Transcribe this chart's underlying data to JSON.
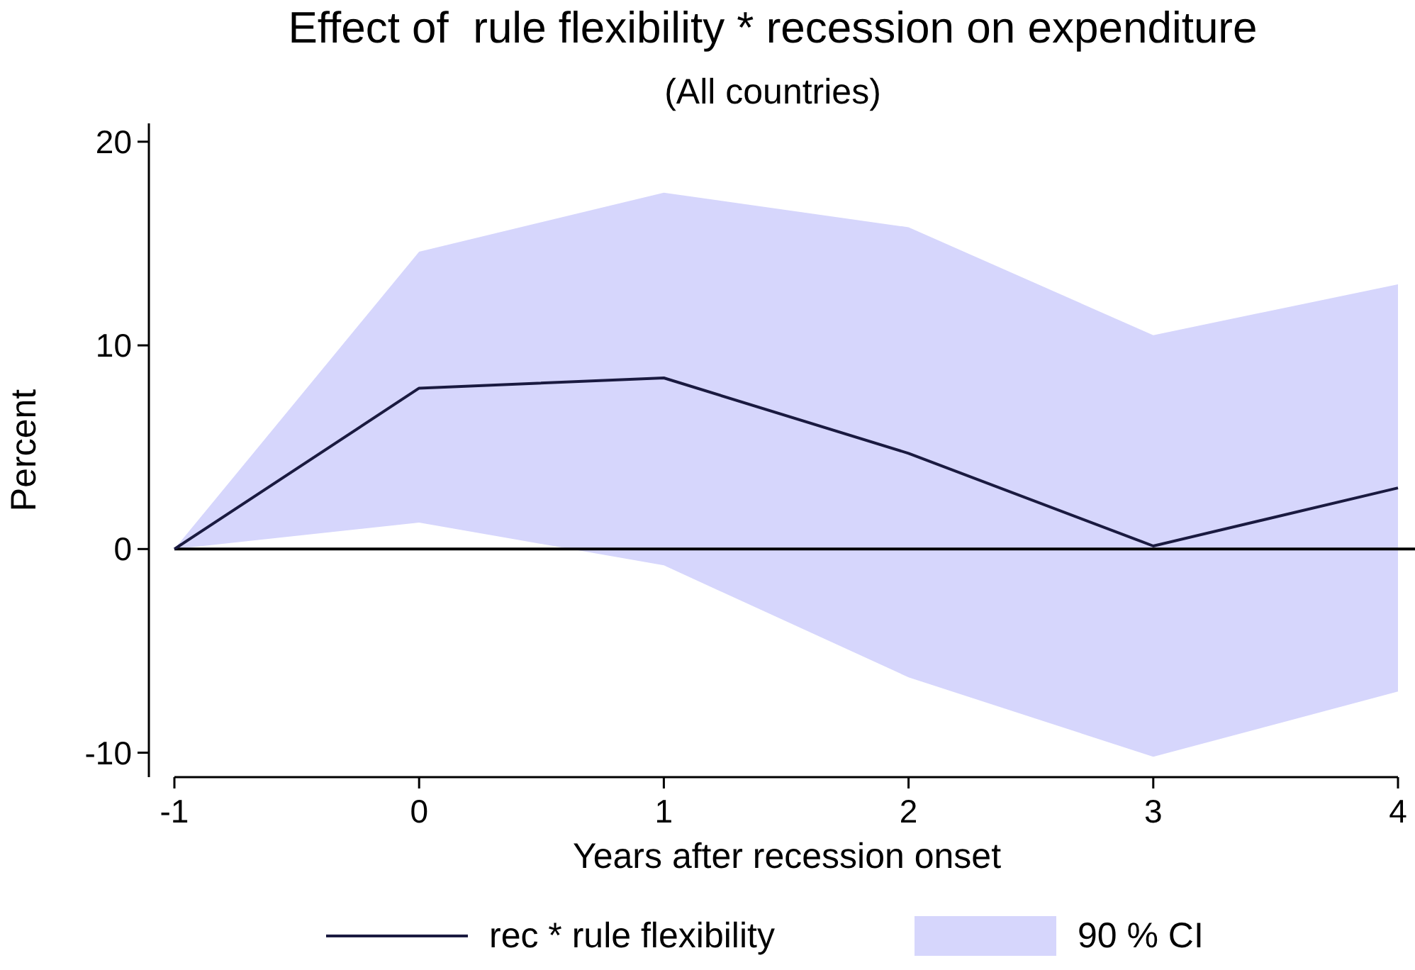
{
  "chart_data": {
    "type": "line",
    "title": "Effect of  rule flexibility * recession on expenditure",
    "subtitle": "(All countries)",
    "xlabel": "Years after recession onset",
    "ylabel": "Percent",
    "x": [
      -1,
      0,
      1,
      2,
      3,
      4
    ],
    "xlim": [
      -1,
      4
    ],
    "xticks": [
      -1,
      0,
      1,
      2,
      3,
      4
    ],
    "ylim": [
      -11.2,
      20.9
    ],
    "yticks": [
      -10,
      0,
      10,
      20
    ],
    "series": [
      {
        "name": "rec * rule flexibility",
        "color": "#1a1a40",
        "values": [
          0,
          7.9,
          8.4,
          4.7,
          0.15,
          3.0
        ],
        "lower": [
          0,
          1.3,
          -0.8,
          -6.3,
          -10.2,
          -7.0
        ],
        "upper": [
          0,
          14.6,
          17.5,
          15.8,
          10.5,
          13.0
        ]
      }
    ],
    "annotations": [
      "90 % CI"
    ],
    "ref_lines": [
      {
        "axis": "y",
        "value": 0,
        "color": "#000000"
      }
    ],
    "grid": false,
    "legend": "bottom",
    "marker": "none",
    "line_style": "solid"
  }
}
